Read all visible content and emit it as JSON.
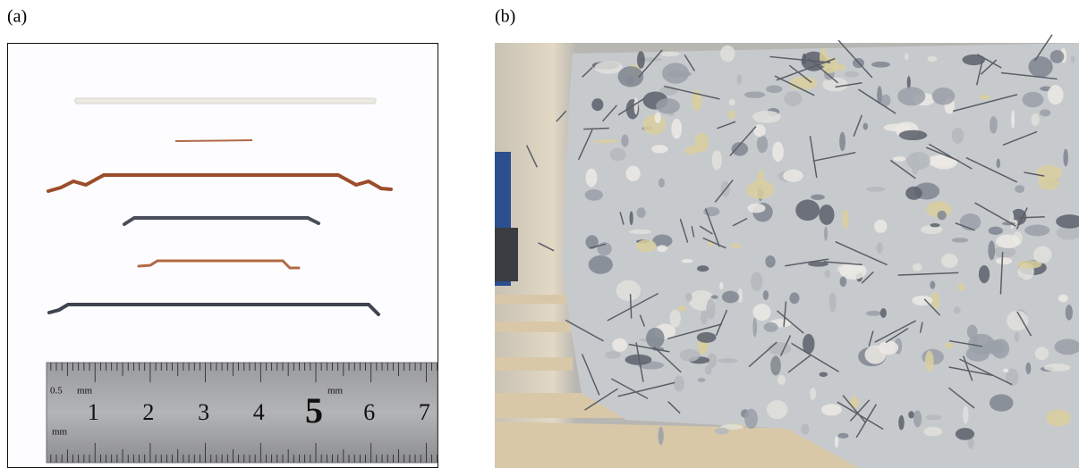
{
  "panels": [
    {
      "label": "(a)",
      "ruler": {
        "numbers": [
          "1",
          "2",
          "3",
          "4",
          "5",
          "6",
          "7"
        ],
        "small_labels": [
          "0.5",
          "mm",
          "mm",
          "mm"
        ]
      }
    },
    {
      "label": "(b)"
    }
  ]
}
